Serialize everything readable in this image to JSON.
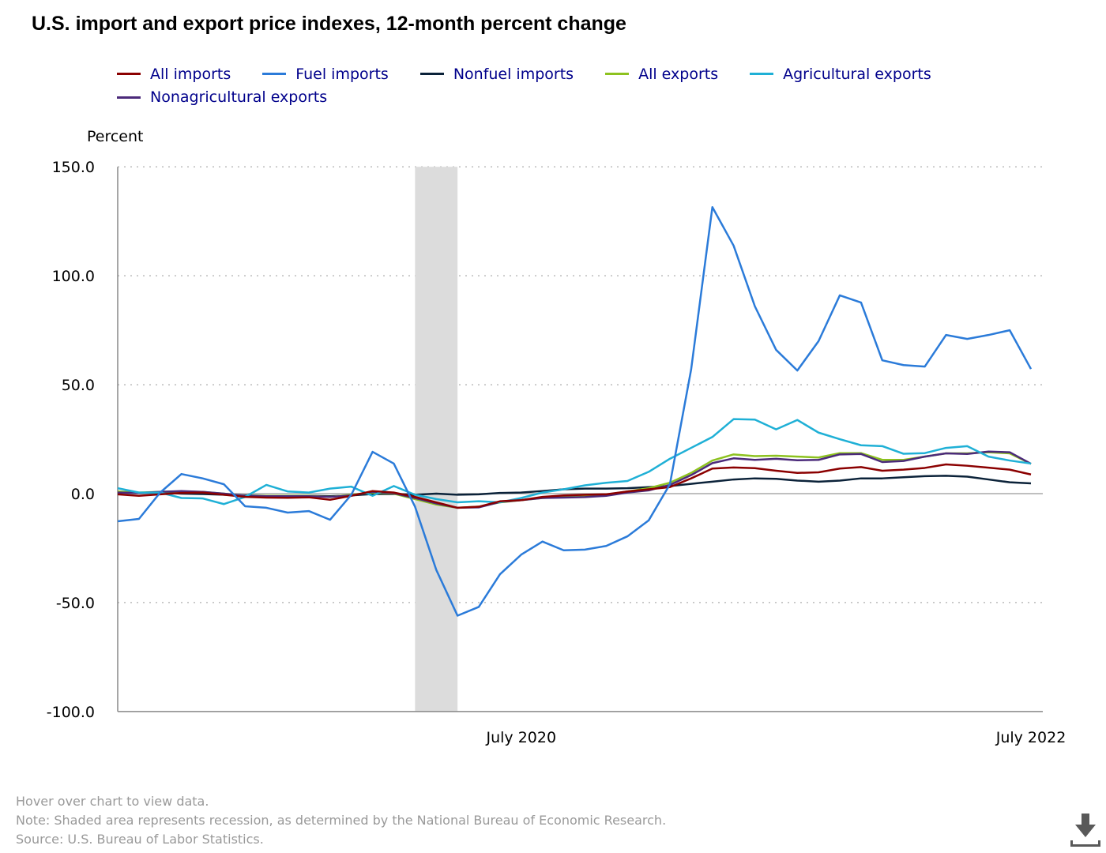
{
  "title": "U.S. import and export price indexes, 12-month percent change",
  "footer": {
    "hover": "Hover over chart to view data.",
    "note": "Note: Shaded area represents recession, as determined by the National Bureau of Economic Research.",
    "source": "Source: U.S. Bureau of Labor Statistics."
  },
  "download_icon": "download-icon",
  "chart_data": {
    "type": "line",
    "title": "U.S. import and export price indexes, 12-month percent change",
    "ylabel": "Percent",
    "xlabel": "",
    "ylim": [
      -100,
      150
    ],
    "yticks": [
      150,
      100,
      50,
      0,
      -50,
      -100
    ],
    "ytick_labels": [
      "150.0",
      "100.0",
      "50.0",
      "0.0",
      "-50.0",
      "-100.0"
    ],
    "x_start": "Dec 2018",
    "x_end": "Jul 2022",
    "n_points": 44,
    "xtick_labels": [
      {
        "index": 19,
        "label": "July 2020"
      },
      {
        "index": 43,
        "label": "July 2022"
      }
    ],
    "recession": {
      "start_index": 14,
      "end_index": 16
    },
    "grid": true,
    "legend_position": "top",
    "series": [
      {
        "name": "All imports",
        "color": "#8b0000",
        "values": [
          -0.3,
          -1,
          -0.3,
          0.3,
          0.5,
          -0.5,
          -1.5,
          -1.8,
          -1.9,
          -1.7,
          -2.8,
          -1,
          1.2,
          0.5,
          -1.5,
          -4,
          -6.5,
          -6,
          -3.5,
          -3,
          -1.5,
          -0.8,
          -0.5,
          -0.3,
          1,
          2,
          3,
          7,
          11.5,
          12,
          11.7,
          10.5,
          9.5,
          9.8,
          11.5,
          12.2,
          10.5,
          11,
          11.8,
          13.4,
          12.8,
          11.9,
          11,
          8.8
        ]
      },
      {
        "name": "Fuel imports",
        "color": "#2b7bd9",
        "values": [
          -12.7,
          -11.6,
          0.5,
          9,
          7,
          4.3,
          -5.8,
          -6.5,
          -8.7,
          -8,
          -12,
          -0.5,
          19.2,
          13.8,
          -6,
          -35,
          -56,
          -52,
          -37,
          -28,
          -22,
          -26,
          -25.7,
          -24,
          -19.6,
          -12.3,
          4.3,
          57,
          131.5,
          113.8,
          86,
          66,
          56.5,
          70,
          91,
          87.7,
          61.2,
          59,
          58.3,
          72.8,
          71,
          72.8,
          75,
          57.2
        ]
      },
      {
        "name": "Nonfuel imports",
        "color": "#0b2239",
        "values": [
          0.5,
          0.3,
          0.5,
          0,
          -0.2,
          -0.5,
          -0.8,
          -1,
          -1,
          -1,
          -1.2,
          -0.8,
          -0.2,
          -0.2,
          -0.5,
          0,
          -0.5,
          -0.3,
          0.3,
          0.5,
          1.2,
          2,
          2.3,
          2.3,
          2.5,
          3,
          3.5,
          4.5,
          5.5,
          6.5,
          7,
          6.8,
          6,
          5.5,
          6,
          7,
          7,
          7.5,
          8,
          8.2,
          7.8,
          6.5,
          5.2,
          4.7
        ]
      },
      {
        "name": "All exports",
        "color": "#8dc21f",
        "values": [
          1,
          0.5,
          0.8,
          1,
          0.8,
          0,
          -1,
          -1,
          -1,
          -1,
          -1.5,
          -0.5,
          0.5,
          0,
          -2.5,
          -5,
          -6.5,
          -6,
          -4,
          -3,
          -2,
          -1.5,
          -1,
          -0.5,
          1,
          2.5,
          5,
          9.5,
          15.2,
          18,
          17.2,
          17.4,
          17,
          16.6,
          18.6,
          18.6,
          15.5,
          15.5,
          17,
          18.5,
          18.5,
          19,
          18.5,
          13.7
        ]
      },
      {
        "name": "Agricultural exports",
        "color": "#1fb0d6",
        "values": [
          2.5,
          0.5,
          0.5,
          -2,
          -2.2,
          -4.8,
          -1.5,
          4,
          1,
          0.5,
          2.3,
          3.2,
          -1,
          3.5,
          -0.5,
          -2.5,
          -4,
          -3.5,
          -4,
          -2,
          0.5,
          2,
          3.8,
          5,
          5.8,
          10,
          16,
          21,
          26,
          34.2,
          34,
          29.5,
          33.8,
          28,
          25,
          22.2,
          21.8,
          18.3,
          18.6,
          21,
          21.8,
          17,
          15.2,
          13.8
        ]
      },
      {
        "name": "Nonagricultural exports",
        "color": "#4b2a7a",
        "values": [
          0.5,
          0.3,
          0.8,
          1.2,
          0.8,
          0,
          -1,
          -1.2,
          -1.2,
          -1.2,
          -1.5,
          -0.8,
          0.8,
          0.2,
          -2,
          -4.5,
          -6.5,
          -6.3,
          -3.8,
          -3,
          -2,
          -1.8,
          -1.6,
          -1,
          0.5,
          1.5,
          4,
          8.5,
          14,
          16.2,
          15.5,
          16,
          15.3,
          15.5,
          18,
          18.2,
          14.5,
          15,
          17,
          18.5,
          18.2,
          19.3,
          19,
          13.7
        ]
      }
    ]
  }
}
